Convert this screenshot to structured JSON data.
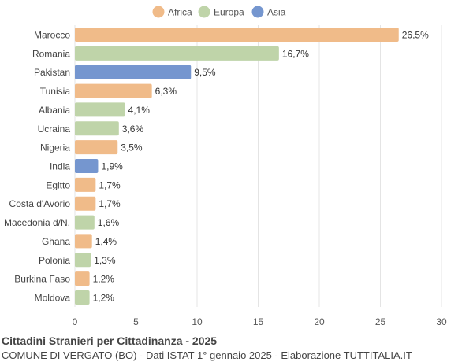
{
  "chart_data": {
    "type": "bar",
    "orientation": "horizontal",
    "title": "Cittadini Stranieri per Cittadinanza - 2025",
    "subtitle": "COMUNE DI VERGATO (BO) - Dati ISTAT 1° gennaio 2025 - Elaborazione TUTTITALIA.IT",
    "legend": {
      "placement": "top",
      "entries": [
        {
          "name": "Africa",
          "color": "#f0bb89"
        },
        {
          "name": "Europa",
          "color": "#bfd4a9"
        },
        {
          "name": "Asia",
          "color": "#7596cf"
        }
      ]
    },
    "categories": [
      "Marocco",
      "Romania",
      "Pakistan",
      "Tunisia",
      "Albania",
      "Ucraina",
      "Nigeria",
      "India",
      "Egitto",
      "Costa d'Avorio",
      "Macedonia d/N.",
      "Ghana",
      "Polonia",
      "Burkina Faso",
      "Moldova"
    ],
    "values": [
      26.5,
      16.7,
      9.5,
      6.3,
      4.1,
      3.6,
      3.5,
      1.9,
      1.7,
      1.7,
      1.6,
      1.4,
      1.3,
      1.2,
      1.2
    ],
    "labels": [
      "26,5%",
      "16,7%",
      "9,5%",
      "6,3%",
      "4,1%",
      "3,6%",
      "3,5%",
      "1,9%",
      "1,7%",
      "1,7%",
      "1,6%",
      "1,4%",
      "1,3%",
      "1,2%",
      "1,2%"
    ],
    "groups": [
      "Africa",
      "Europa",
      "Asia",
      "Africa",
      "Europa",
      "Europa",
      "Africa",
      "Asia",
      "Africa",
      "Africa",
      "Europa",
      "Africa",
      "Europa",
      "Africa",
      "Europa"
    ],
    "xlim": [
      0,
      30
    ],
    "xticks": [
      0,
      5,
      10,
      15,
      20,
      25,
      30
    ],
    "grid": true
  }
}
